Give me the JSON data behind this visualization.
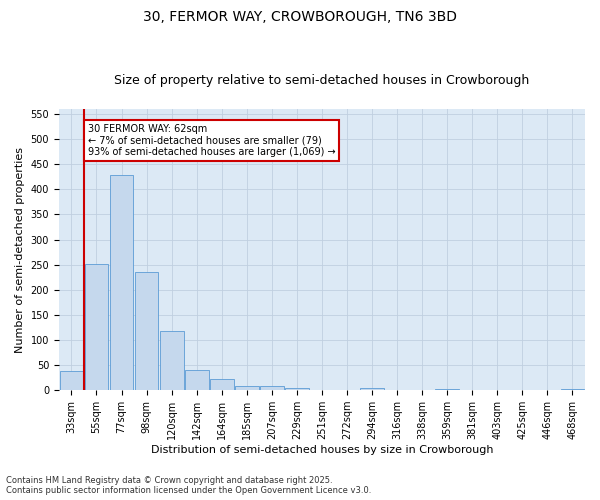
{
  "title": "30, FERMOR WAY, CROWBOROUGH, TN6 3BD",
  "subtitle": "Size of property relative to semi-detached houses in Crowborough",
  "xlabel": "Distribution of semi-detached houses by size in Crowborough",
  "ylabel": "Number of semi-detached properties",
  "categories": [
    "33sqm",
    "55sqm",
    "77sqm",
    "98sqm",
    "120sqm",
    "142sqm",
    "164sqm",
    "185sqm",
    "207sqm",
    "229sqm",
    "251sqm",
    "272sqm",
    "294sqm",
    "316sqm",
    "338sqm",
    "359sqm",
    "381sqm",
    "403sqm",
    "425sqm",
    "446sqm",
    "468sqm"
  ],
  "values": [
    38,
    252,
    428,
    235,
    118,
    40,
    22,
    9,
    8,
    5,
    0,
    0,
    4,
    0,
    0,
    3,
    0,
    0,
    0,
    0,
    3
  ],
  "bar_color": "#c5d8ed",
  "bar_edge_color": "#5b9bd5",
  "red_line_index": 1,
  "annotation_text": "30 FERMOR WAY: 62sqm\n← 7% of semi-detached houses are smaller (79)\n93% of semi-detached houses are larger (1,069) →",
  "annotation_box_edge_color": "#cc0000",
  "ylim": [
    0,
    560
  ],
  "yticks": [
    0,
    50,
    100,
    150,
    200,
    250,
    300,
    350,
    400,
    450,
    500,
    550
  ],
  "grid_color": "#c0cfe0",
  "plot_bg_color": "#dce9f5",
  "fig_bg_color": "#ffffff",
  "footer": "Contains HM Land Registry data © Crown copyright and database right 2025.\nContains public sector information licensed under the Open Government Licence v3.0.",
  "title_fontsize": 10,
  "subtitle_fontsize": 9,
  "tick_fontsize": 7,
  "ylabel_fontsize": 8,
  "xlabel_fontsize": 8,
  "footer_fontsize": 6
}
